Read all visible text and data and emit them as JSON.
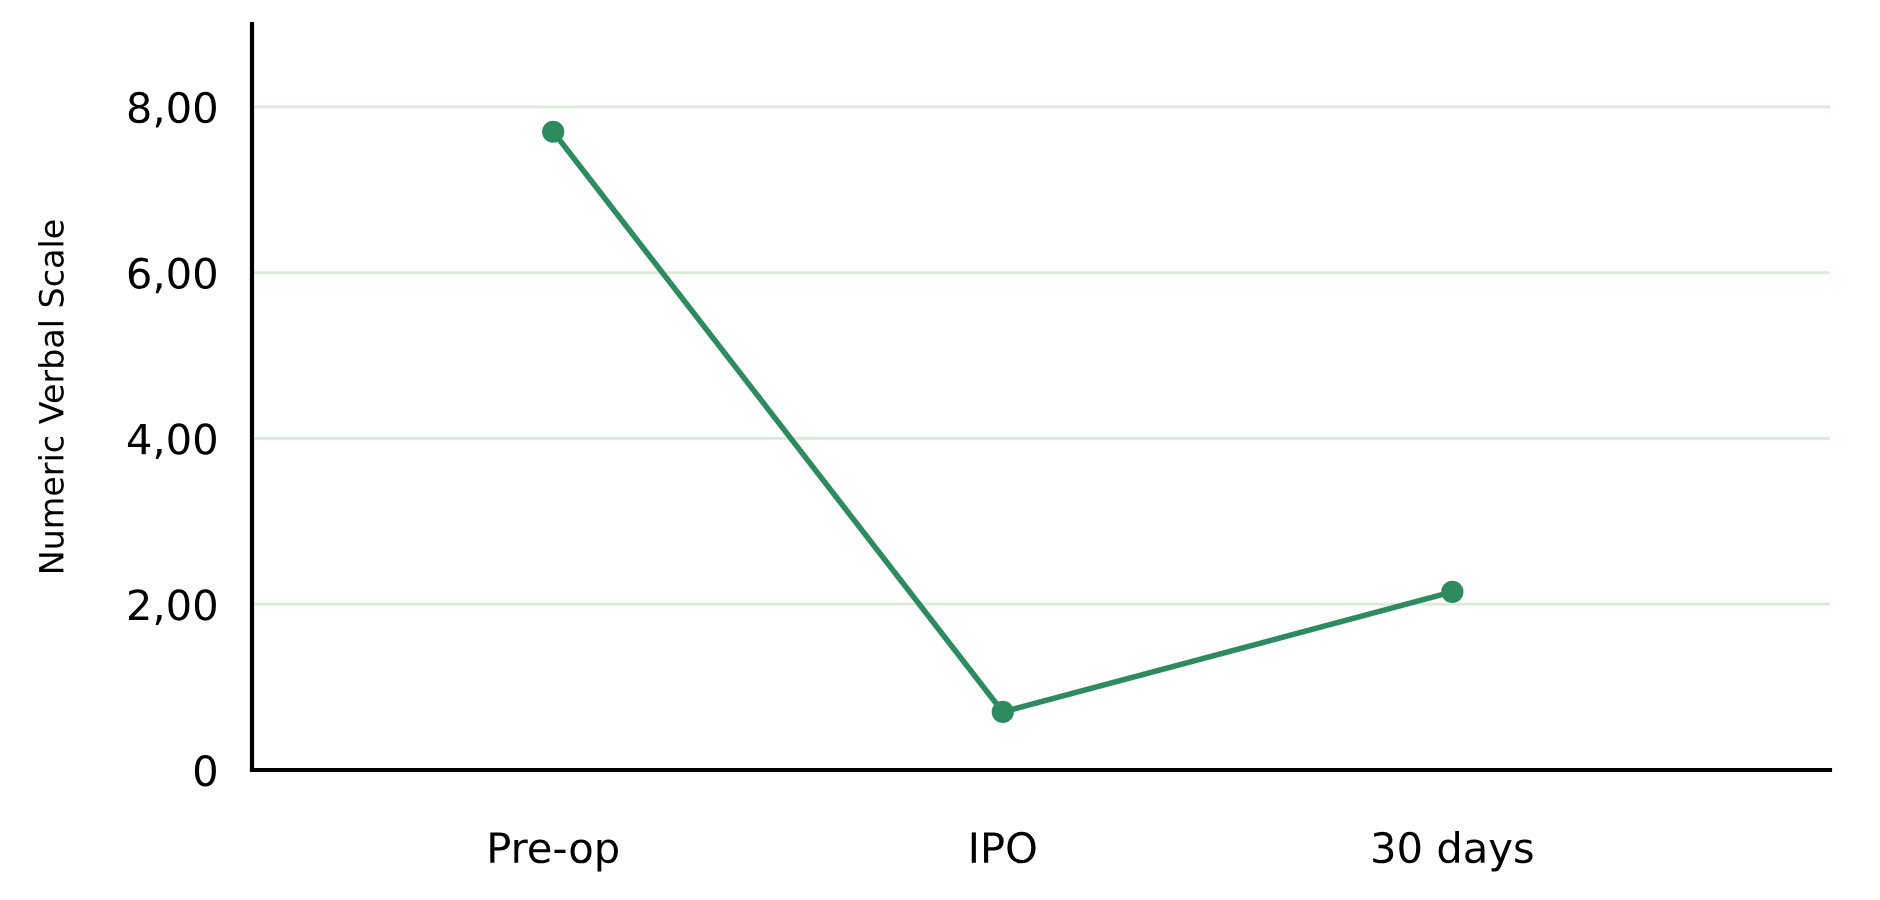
{
  "chart_data": {
    "type": "line",
    "ylabel": "Numeric Verbal Scale",
    "categories": [
      "Pre-op",
      "IPO",
      "30 days"
    ],
    "series": [
      {
        "color": "#2e8b5f",
        "values": [
          7.7,
          0.7,
          2.15
        ]
      }
    ],
    "ylim": [
      0,
      9
    ],
    "yticks": [
      {
        "value": 0,
        "label": "0"
      },
      {
        "value": 2,
        "label": "2,00"
      },
      {
        "value": 4,
        "label": "4,00"
      },
      {
        "value": 6,
        "label": "6,00"
      },
      {
        "value": 8,
        "label": "8,00"
      }
    ],
    "grid": "y",
    "marker": "circle",
    "line_style": "solid"
  }
}
